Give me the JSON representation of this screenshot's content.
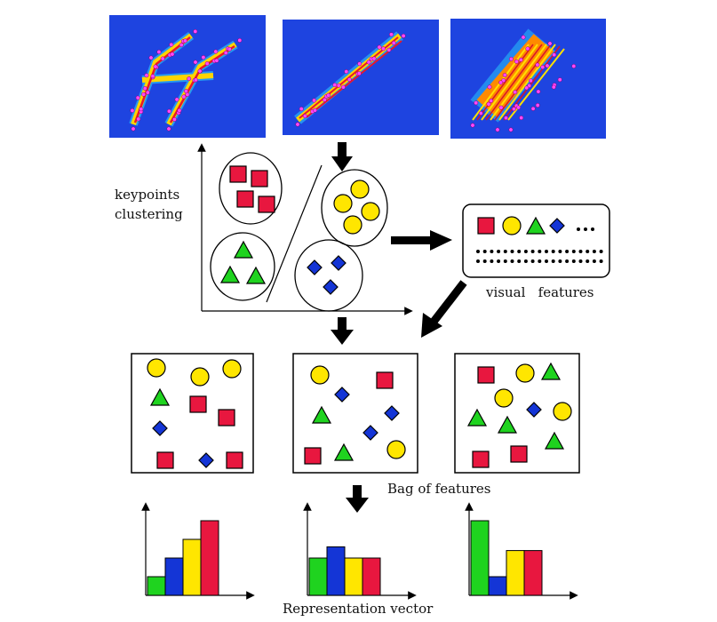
{
  "labels": {
    "clustering_line1": "keypoints",
    "clustering_line2": "clustering",
    "visual_features": "visual   features",
    "bag_of_features": "Bag of features",
    "representation_vector": "Representation vector"
  },
  "colors": {
    "red": "#e8173f",
    "yellow": "#ffe600",
    "green": "#1fd31f",
    "blue": "#1435d6",
    "heatmap_bg": "#1a3fd6"
  },
  "histograms": [
    {
      "values": [
        1,
        2,
        3,
        4
      ]
    },
    {
      "values": [
        2,
        2.6,
        2,
        2
      ]
    },
    {
      "values": [
        4,
        1,
        2.4,
        2.4
      ]
    }
  ]
}
